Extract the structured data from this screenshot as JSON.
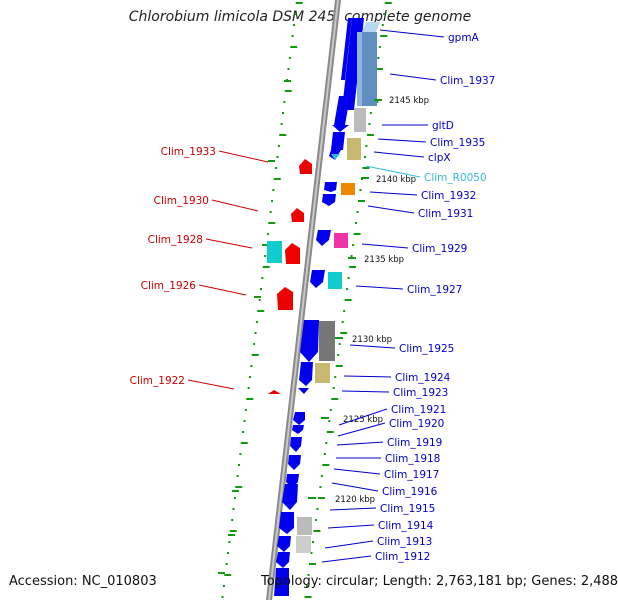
{
  "title": "Chlorobium limicola DSM 245, complete genome",
  "accession": "Accession: NC_010803",
  "summary": "Topology: circular; Length: 2,763,181 bp; Genes: 2,488",
  "ruler_ticks": [
    "2145 kbp",
    "2140 kbp",
    "2135 kbp",
    "2130 kbp",
    "2125 kbp",
    "2120 kbp"
  ],
  "right_labels": [
    "gpmA",
    "Clim_1937",
    "gltD",
    "Clim_1935",
    "clpX",
    "Clim_R0050",
    "Clim_1932",
    "Clim_1931",
    "Clim_1929",
    "Clim_1927",
    "Clim_1925",
    "Clim_1924",
    "Clim_1923",
    "Clim_1921",
    "Clim_1920",
    "Clim_1919",
    "Clim_1918",
    "Clim_1917",
    "Clim_1916",
    "Clim_1915",
    "Clim_1914",
    "Clim_1913",
    "Clim_1912"
  ],
  "left_labels": [
    "Clim_1933",
    "Clim_1930",
    "Clim_1928",
    "Clim_1926",
    "Clim_1922"
  ],
  "colors": {
    "forward_gene": "#0000ee",
    "reverse_gene": "#ee0000",
    "right_label": "#0000cc",
    "left_label": "#cc0000",
    "rna_label": "#33bbdd",
    "backbone": "#888888",
    "gc_dots": "#119911",
    "cog_cyan": "#11cccc",
    "cog_magenta": "#ee33aa",
    "cog_orange": "#ee8800",
    "cog_tan": "#c8b870",
    "cog_steel": "#5f8fbf",
    "cog_gray": "#777777"
  }
}
